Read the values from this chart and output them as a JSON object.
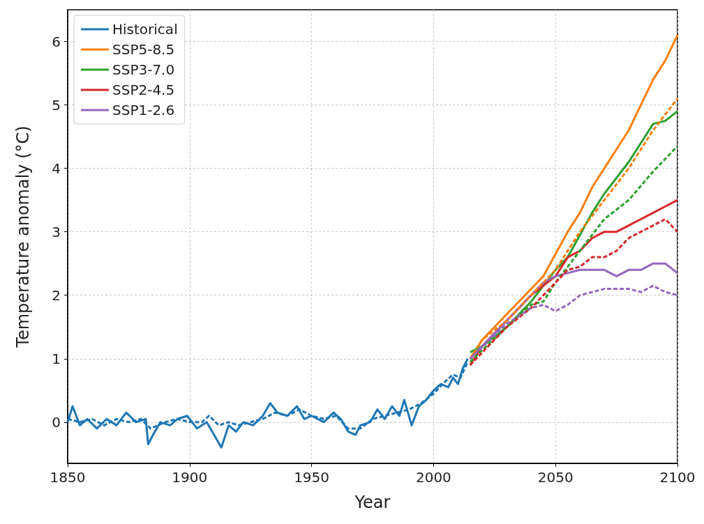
{
  "chart_data": {
    "type": "line",
    "xlabel": "Year",
    "ylabel": "Temperature anomaly (°C)",
    "xlim": [
      1850,
      2100
    ],
    "xticks": [
      1850,
      1900,
      1950,
      2000,
      2050,
      2100
    ],
    "ylim": [
      -0.65,
      6.5
    ],
    "yticks": [
      0,
      1,
      2,
      3,
      4,
      5,
      6
    ],
    "grid": true,
    "legend": "top left",
    "marker": "none",
    "series": [
      {
        "name": "Historical",
        "color": "#1f77b4",
        "line_style": "solid",
        "x": [
          1850,
          1852,
          1855,
          1858,
          1862,
          1866,
          1870,
          1874,
          1878,
          1882,
          1883,
          1885,
          1888,
          1892,
          1895,
          1899,
          1903,
          1907,
          1910,
          1913,
          1916,
          1919,
          1922,
          1926,
          1930,
          1933,
          1936,
          1940,
          1944,
          1947,
          1950,
          1955,
          1959,
          1962,
          1965,
          1968,
          1970,
          1974,
          1977,
          1980,
          1983,
          1986,
          1988,
          1991,
          1994,
          1997,
          2000,
          2003,
          2006,
          2008,
          2010,
          2012,
          2014
        ],
        "values": [
          0.0,
          0.25,
          -0.05,
          0.05,
          -0.1,
          0.05,
          -0.05,
          0.15,
          0.0,
          0.05,
          -0.35,
          -0.2,
          0.0,
          -0.05,
          0.05,
          0.1,
          -0.1,
          0.0,
          -0.2,
          -0.4,
          -0.05,
          -0.15,
          0.0,
          -0.05,
          0.1,
          0.3,
          0.15,
          0.1,
          0.25,
          0.05,
          0.1,
          0.0,
          0.15,
          0.05,
          -0.15,
          -0.2,
          -0.05,
          0.0,
          0.2,
          0.05,
          0.25,
          0.1,
          0.35,
          -0.05,
          0.25,
          0.35,
          0.5,
          0.6,
          0.55,
          0.7,
          0.6,
          0.85,
          1.0
        ]
      },
      {
        "name": "SSP5-8.5",
        "color": "#ff7f0e",
        "line_style": "solid",
        "x": [
          2015,
          2020,
          2025,
          2030,
          2035,
          2040,
          2045,
          2050,
          2055,
          2060,
          2065,
          2070,
          2075,
          2080,
          2085,
          2090,
          2095,
          2100
        ],
        "values": [
          1.0,
          1.3,
          1.5,
          1.7,
          1.9,
          2.1,
          2.3,
          2.65,
          3.0,
          3.3,
          3.7,
          4.0,
          4.3,
          4.6,
          5.0,
          5.4,
          5.7,
          6.1
        ]
      },
      {
        "name": "SSP3-7.0",
        "color": "#2ca02c",
        "line_style": "solid",
        "x": [
          2015,
          2020,
          2030,
          2040,
          2050,
          2055,
          2060,
          2065,
          2070,
          2075,
          2080,
          2085,
          2090,
          2095,
          2100
        ],
        "values": [
          1.1,
          1.2,
          1.5,
          1.9,
          2.4,
          2.6,
          2.95,
          3.3,
          3.6,
          3.85,
          4.1,
          4.4,
          4.7,
          4.75,
          4.9
        ]
      },
      {
        "name": "SSP2-4.5",
        "color": "#d62728",
        "line_style": "solid",
        "x": [
          2015,
          2020,
          2030,
          2040,
          2050,
          2055,
          2060,
          2065,
          2070,
          2075,
          2080,
          2085,
          2090,
          2095,
          2100
        ],
        "values": [
          0.9,
          1.2,
          1.6,
          2.0,
          2.3,
          2.6,
          2.7,
          2.9,
          3.0,
          3.0,
          3.1,
          3.2,
          3.3,
          3.4,
          3.5
        ]
      },
      {
        "name": "SSP1-2.6",
        "color": "#9467bd",
        "line_style": "solid",
        "x": [
          2015,
          2020,
          2030,
          2040,
          2045,
          2050,
          2055,
          2060,
          2065,
          2070,
          2075,
          2080,
          2085,
          2090,
          2095,
          2100
        ],
        "values": [
          1.0,
          1.2,
          1.6,
          2.0,
          2.2,
          2.3,
          2.35,
          2.4,
          2.4,
          2.4,
          2.3,
          2.4,
          2.4,
          2.5,
          2.5,
          2.35
        ]
      },
      {
        "color": "#1f77b4",
        "line_style": "dashed",
        "x": [
          1850,
          1855,
          1860,
          1865,
          1870,
          1875,
          1880,
          1884,
          1890,
          1895,
          1900,
          1905,
          1908,
          1912,
          1916,
          1920,
          1925,
          1930,
          1935,
          1940,
          1945,
          1950,
          1955,
          1960,
          1965,
          1970,
          1975,
          1980,
          1985,
          1990,
          1995,
          2000,
          2005,
          2008,
          2011,
          2014
        ],
        "values": [
          0.05,
          0.0,
          0.05,
          -0.05,
          0.05,
          0.0,
          0.05,
          -0.1,
          0.0,
          0.05,
          0.0,
          0.0,
          0.1,
          -0.05,
          0.0,
          -0.05,
          0.0,
          0.05,
          0.15,
          0.1,
          0.2,
          0.1,
          0.05,
          0.1,
          -0.1,
          -0.1,
          0.05,
          0.1,
          0.15,
          0.2,
          0.3,
          0.45,
          0.65,
          0.75,
          0.7,
          0.95
        ]
      },
      {
        "color": "#ff7f0e",
        "line_style": "dashed",
        "x": [
          2015,
          2020,
          2030,
          2040,
          2050,
          2060,
          2070,
          2080,
          2090,
          2100
        ],
        "values": [
          1.0,
          1.3,
          1.6,
          2.0,
          2.4,
          3.0,
          3.5,
          4.0,
          4.6,
          5.1
        ]
      },
      {
        "color": "#2ca02c",
        "line_style": "dashed",
        "x": [
          2015,
          2030,
          2040,
          2045,
          2050,
          2060,
          2070,
          2080,
          2090,
          2100
        ],
        "values": [
          0.95,
          1.5,
          1.85,
          1.9,
          2.2,
          2.7,
          3.2,
          3.5,
          3.95,
          4.35
        ]
      },
      {
        "color": "#d62728",
        "line_style": "dashed",
        "x": [
          2015,
          2030,
          2040,
          2050,
          2055,
          2060,
          2065,
          2070,
          2075,
          2080,
          2085,
          2090,
          2095,
          2100
        ],
        "values": [
          0.9,
          1.5,
          1.8,
          2.2,
          2.4,
          2.45,
          2.6,
          2.6,
          2.7,
          2.9,
          3.0,
          3.1,
          3.2,
          3.0
        ]
      },
      {
        "color": "#9467bd",
        "line_style": "dashed",
        "x": [
          2015,
          2030,
          2040,
          2045,
          2050,
          2055,
          2060,
          2070,
          2080,
          2085,
          2090,
          2095,
          2100
        ],
        "values": [
          1.0,
          1.55,
          1.8,
          1.85,
          1.75,
          1.85,
          2.0,
          2.1,
          2.1,
          2.05,
          2.15,
          2.05,
          2.0
        ]
      }
    ]
  }
}
